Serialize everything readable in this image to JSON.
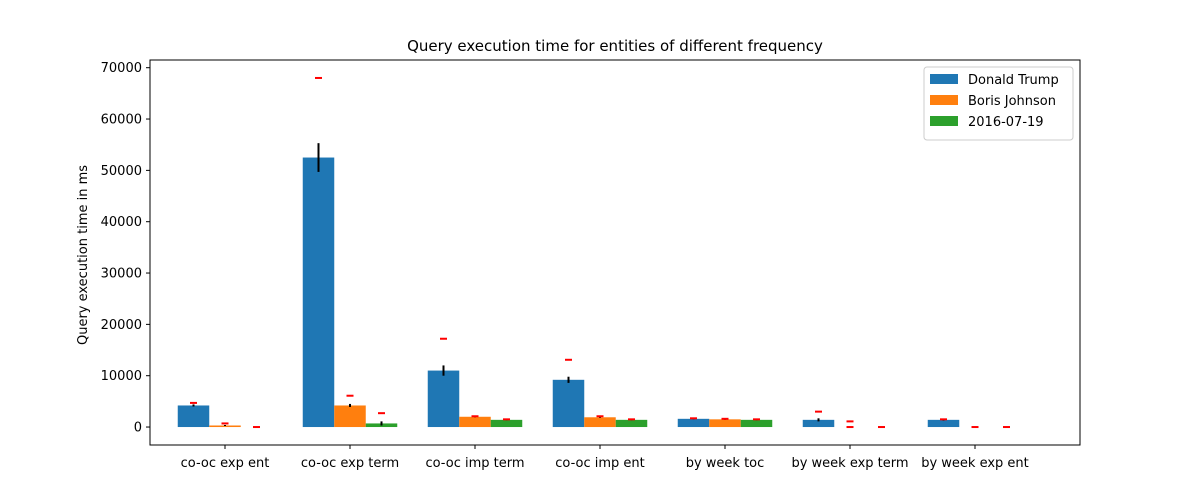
{
  "chart_data": {
    "type": "bar",
    "title": "Query execution time for entities of different frequency",
    "xlabel": "",
    "ylabel": "Query execution time in ms",
    "ylim": [
      -3500,
      71500
    ],
    "yticks": [
      0,
      10000,
      20000,
      30000,
      40000,
      50000,
      60000,
      70000
    ],
    "categories": [
      "co-oc exp ent",
      "co-oc exp term",
      "co-oc imp term",
      "co-oc imp ent",
      "by week toc",
      "by week exp term",
      "by week exp ent"
    ],
    "series": [
      {
        "name": "Donald Trump",
        "color": "#1f77b4",
        "values": [
          4200,
          52500,
          11000,
          9200,
          1600,
          1400,
          1400
        ],
        "error": [
          200,
          2800,
          1000,
          600,
          100,
          300,
          150
        ],
        "max": [
          4700,
          68000,
          17200,
          13100,
          1700,
          3000,
          1500
        ]
      },
      {
        "name": "Boris Johnson",
        "color": "#ff7f0e",
        "values": [
          300,
          4200,
          2000,
          1900,
          1500,
          0,
          0
        ],
        "error": [
          100,
          300,
          100,
          100,
          80,
          0,
          0
        ],
        "max": [
          700,
          6100,
          2100,
          2100,
          1600,
          1100,
          0
        ],
        "min": [
          null,
          null,
          null,
          null,
          null,
          0,
          null
        ]
      },
      {
        "name": "2016-07-19",
        "color": "#2ca02c",
        "values": [
          0,
          700,
          1400,
          1400,
          1400,
          0,
          0
        ],
        "error": [
          0,
          400,
          80,
          80,
          80,
          0,
          0
        ],
        "max": [
          0,
          2700,
          1500,
          1500,
          1500,
          0,
          0
        ]
      }
    ],
    "legend_position": "top-right",
    "grid": false
  }
}
